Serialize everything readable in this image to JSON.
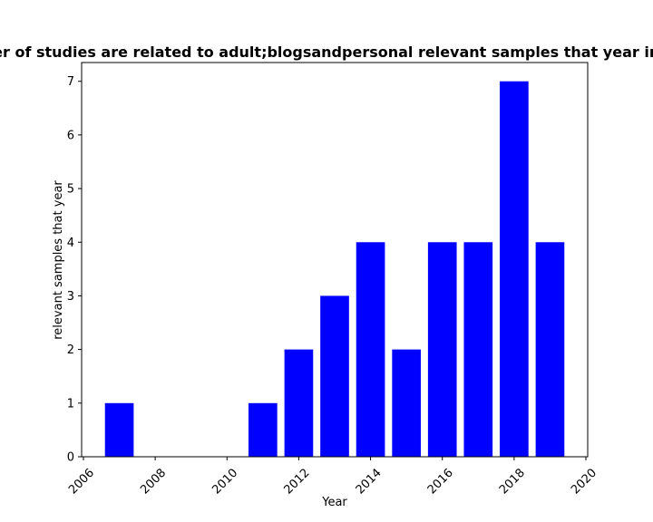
{
  "chart_data": {
    "type": "bar",
    "title": "Number of studies are related to adult;blogsandpersonal relevant samples that year in privacy",
    "xlabel": "Year",
    "ylabel": "relevant samples that year",
    "x": [
      2007,
      2011,
      2012,
      2013,
      2014,
      2015,
      2016,
      2017,
      2018,
      2019
    ],
    "values": [
      1,
      1,
      2,
      3,
      4,
      2,
      4,
      4,
      7,
      4
    ],
    "bar_width": 0.8,
    "xlim": [
      2005.95,
      2020.05
    ],
    "ylim": [
      0,
      7.35
    ],
    "x_ticks": [
      2006,
      2008,
      2010,
      2012,
      2014,
      2016,
      2018,
      2020
    ],
    "y_ticks": [
      0,
      1,
      2,
      3,
      4,
      5,
      6,
      7
    ],
    "bar_color": "#0000ff",
    "grid": false,
    "legend": "none"
  }
}
